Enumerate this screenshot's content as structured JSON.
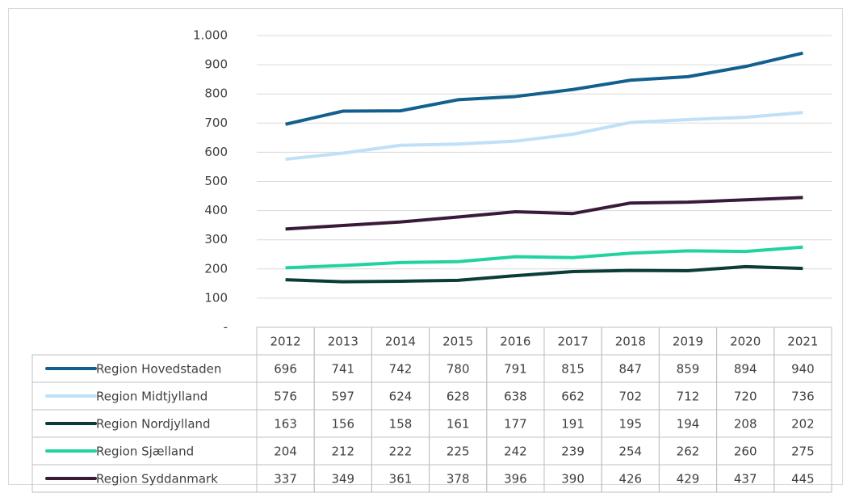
{
  "chart_data": {
    "type": "line",
    "categories": [
      "2012",
      "2013",
      "2014",
      "2015",
      "2016",
      "2017",
      "2018",
      "2019",
      "2020",
      "2021"
    ],
    "series": [
      {
        "name": "Region Hovedstaden",
        "color": "#135f8d",
        "values": [
          696,
          741,
          742,
          780,
          791,
          815,
          847,
          859,
          894,
          940
        ]
      },
      {
        "name": "Region Midtjylland",
        "color": "#bfe1f7",
        "values": [
          576,
          597,
          624,
          628,
          638,
          662,
          702,
          712,
          720,
          736
        ]
      },
      {
        "name": "Region Nordjylland",
        "color": "#0b3d37",
        "values": [
          163,
          156,
          158,
          161,
          177,
          191,
          195,
          194,
          208,
          202
        ]
      },
      {
        "name": "Region Sjælland",
        "color": "#22d39f",
        "values": [
          204,
          212,
          222,
          225,
          242,
          239,
          254,
          262,
          260,
          275
        ]
      },
      {
        "name": "Region Syddanmark",
        "color": "#3a1a3a",
        "values": [
          337,
          349,
          361,
          378,
          396,
          390,
          426,
          429,
          437,
          445
        ]
      }
    ],
    "ylim": [
      0,
      1000
    ],
    "yticks": [
      {
        "value": 0,
        "label": "-"
      },
      100,
      200,
      300,
      400,
      500,
      600,
      700,
      800,
      900,
      {
        "value": 1000,
        "label": "1.000"
      }
    ],
    "grid": true
  }
}
